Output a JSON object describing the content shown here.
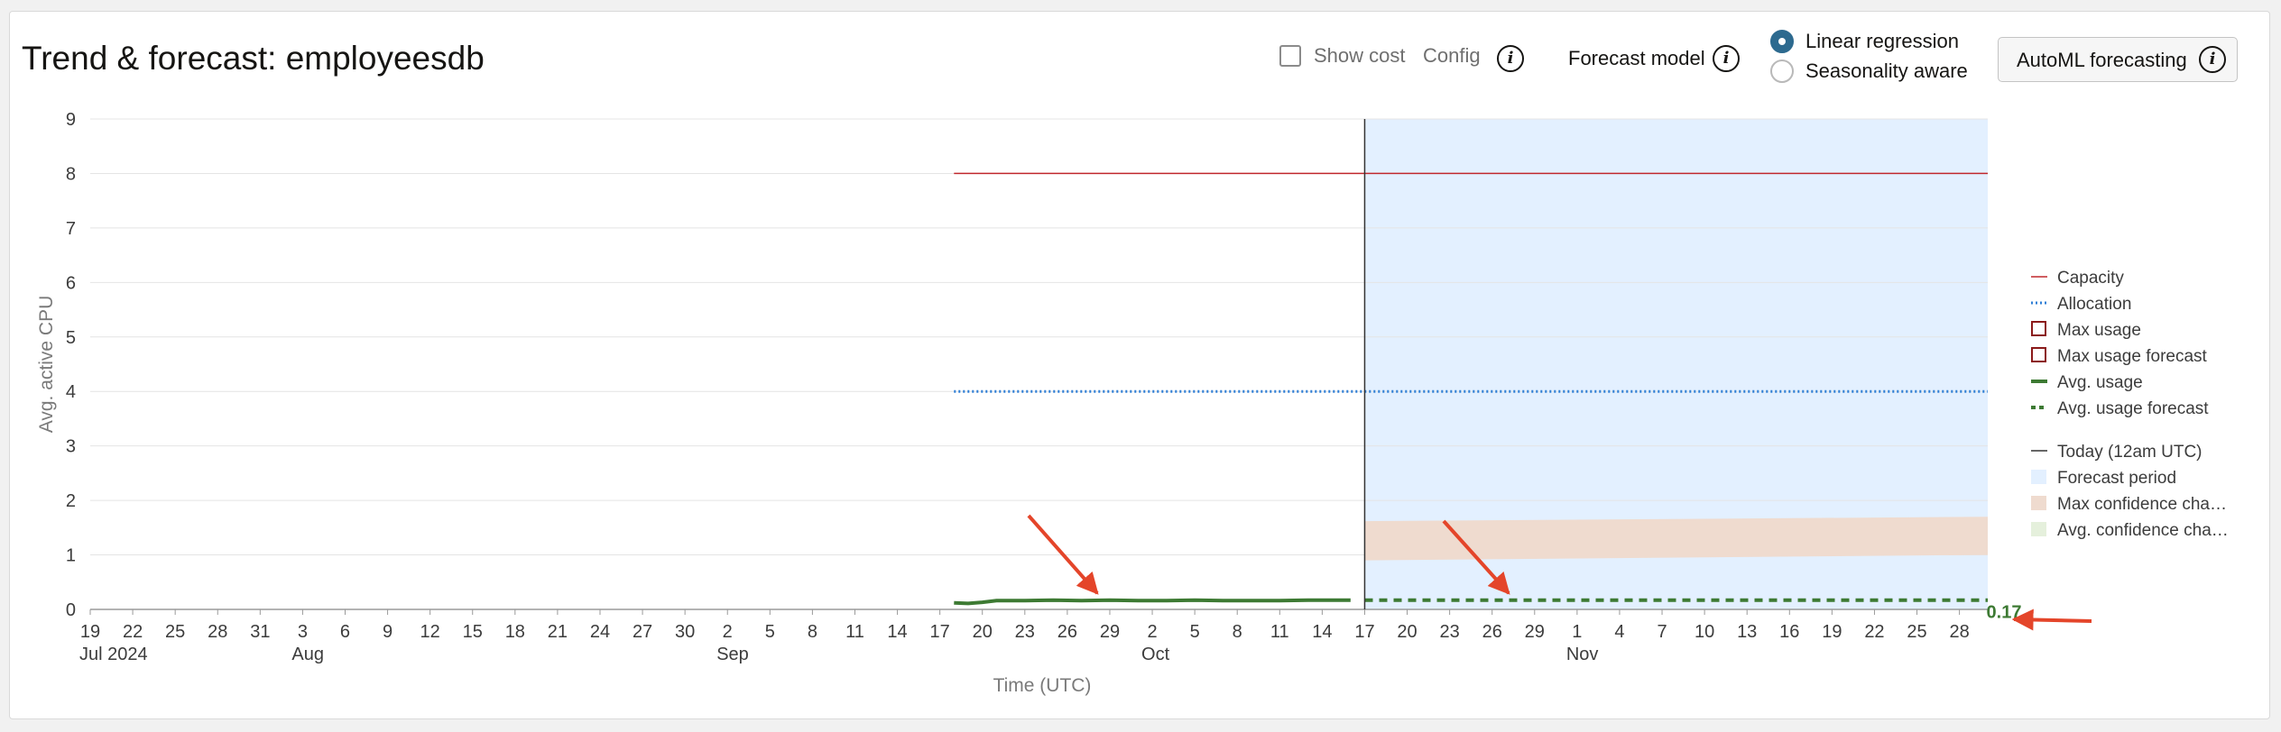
{
  "header": {
    "title": "Trend & forecast: employeesdb",
    "show_cost_label": "Show cost",
    "config_label": "Config",
    "forecast_model_label": "Forecast model",
    "model_options": [
      {
        "label": "Linear regression",
        "selected": true
      },
      {
        "label": "Seasonality aware",
        "selected": false
      }
    ],
    "automl_label": "AutoML forecasting",
    "info_glyph": "i"
  },
  "colors": {
    "capacity": "#c0282d",
    "allocation": "#2f7fd6",
    "avg_usage": "#3d7a33",
    "max_usage": "#8b1a1a",
    "today": "#333333",
    "forecast_period": "#e3f0ff",
    "max_confidence": "#efdbcf",
    "avg_confidence": "#e5f0dc",
    "annotation_arrow": "#e4452a"
  },
  "chart_data": {
    "type": "line",
    "xlabel": "Time (UTC)",
    "ylabel": "Avg. active CPU",
    "ylim": [
      0,
      9
    ],
    "yticks": [
      0,
      1,
      2,
      3,
      4,
      5,
      6,
      7,
      8,
      9
    ],
    "x_range": [
      "2024-07-19",
      "2024-11-30"
    ],
    "x_ticks": [
      {
        "date": "2024-07-19",
        "label": "19",
        "sub": "Jul 2024"
      },
      {
        "date": "2024-07-22",
        "label": "22"
      },
      {
        "date": "2024-07-25",
        "label": "25"
      },
      {
        "date": "2024-07-28",
        "label": "28"
      },
      {
        "date": "2024-07-31",
        "label": "31"
      },
      {
        "date": "2024-08-03",
        "label": "3",
        "sub": "Aug"
      },
      {
        "date": "2024-08-06",
        "label": "6"
      },
      {
        "date": "2024-08-09",
        "label": "9"
      },
      {
        "date": "2024-08-12",
        "label": "12"
      },
      {
        "date": "2024-08-15",
        "label": "15"
      },
      {
        "date": "2024-08-18",
        "label": "18"
      },
      {
        "date": "2024-08-21",
        "label": "21"
      },
      {
        "date": "2024-08-24",
        "label": "24"
      },
      {
        "date": "2024-08-27",
        "label": "27"
      },
      {
        "date": "2024-08-30",
        "label": "30"
      },
      {
        "date": "2024-09-02",
        "label": "2",
        "sub": "Sep"
      },
      {
        "date": "2024-09-05",
        "label": "5"
      },
      {
        "date": "2024-09-08",
        "label": "8"
      },
      {
        "date": "2024-09-11",
        "label": "11"
      },
      {
        "date": "2024-09-14",
        "label": "14"
      },
      {
        "date": "2024-09-17",
        "label": "17"
      },
      {
        "date": "2024-09-20",
        "label": "20"
      },
      {
        "date": "2024-09-23",
        "label": "23"
      },
      {
        "date": "2024-09-26",
        "label": "26"
      },
      {
        "date": "2024-09-29",
        "label": "29"
      },
      {
        "date": "2024-10-02",
        "label": "2",
        "sub": "Oct"
      },
      {
        "date": "2024-10-05",
        "label": "5"
      },
      {
        "date": "2024-10-08",
        "label": "8"
      },
      {
        "date": "2024-10-11",
        "label": "11"
      },
      {
        "date": "2024-10-14",
        "label": "14"
      },
      {
        "date": "2024-10-17",
        "label": "17"
      },
      {
        "date": "2024-10-20",
        "label": "20"
      },
      {
        "date": "2024-10-23",
        "label": "23"
      },
      {
        "date": "2024-10-26",
        "label": "26"
      },
      {
        "date": "2024-10-29",
        "label": "29"
      },
      {
        "date": "2024-11-01",
        "label": "1",
        "sub": "Nov"
      },
      {
        "date": "2024-11-04",
        "label": "4"
      },
      {
        "date": "2024-11-07",
        "label": "7"
      },
      {
        "date": "2024-11-10",
        "label": "10"
      },
      {
        "date": "2024-11-13",
        "label": "13"
      },
      {
        "date": "2024-11-16",
        "label": "16"
      },
      {
        "date": "2024-11-19",
        "label": "19"
      },
      {
        "date": "2024-11-22",
        "label": "22"
      },
      {
        "date": "2024-11-25",
        "label": "25"
      },
      {
        "date": "2024-11-28",
        "label": "28"
      }
    ],
    "today": "2024-10-17",
    "forecast_period": [
      "2024-10-17",
      "2024-11-30"
    ],
    "series": [
      {
        "name": "Capacity",
        "style": "solid",
        "points": [
          [
            "2024-09-18",
            8
          ],
          [
            "2024-11-30",
            8
          ]
        ]
      },
      {
        "name": "Allocation",
        "style": "dotted",
        "points": [
          [
            "2024-09-18",
            4
          ],
          [
            "2024-11-30",
            4
          ]
        ]
      },
      {
        "name": "Avg. usage",
        "style": "thick",
        "points": [
          [
            "2024-09-18",
            0.12
          ],
          [
            "2024-09-19",
            0.11
          ],
          [
            "2024-09-20",
            0.13
          ],
          [
            "2024-09-21",
            0.16
          ],
          [
            "2024-09-23",
            0.16
          ],
          [
            "2024-09-25",
            0.17
          ],
          [
            "2024-09-27",
            0.16
          ],
          [
            "2024-09-29",
            0.17
          ],
          [
            "2024-10-01",
            0.16
          ],
          [
            "2024-10-03",
            0.16
          ],
          [
            "2024-10-05",
            0.17
          ],
          [
            "2024-10-07",
            0.16
          ],
          [
            "2024-10-09",
            0.16
          ],
          [
            "2024-10-11",
            0.16
          ],
          [
            "2024-10-13",
            0.17
          ],
          [
            "2024-10-15",
            0.17
          ],
          [
            "2024-10-16",
            0.17
          ]
        ]
      },
      {
        "name": "Avg. usage forecast",
        "style": "dashed",
        "points": [
          [
            "2024-10-17",
            0.17
          ],
          [
            "2024-11-30",
            0.17
          ]
        ]
      }
    ],
    "max_confidence_band": {
      "start": "2024-10-17",
      "end": "2024-11-30",
      "lower": [
        0.9,
        1.0
      ],
      "upper": [
        1.62,
        1.7
      ]
    },
    "end_value_label": "0.17",
    "legend": {
      "placement": "right",
      "items": [
        {
          "label": "Capacity",
          "marker": "line"
        },
        {
          "label": "Allocation",
          "marker": "dotted"
        },
        {
          "label": "Max usage",
          "marker": "box"
        },
        {
          "label": "Max usage forecast",
          "marker": "box"
        },
        {
          "label": "Avg. usage",
          "marker": "thick"
        },
        {
          "label": "Avg. usage forecast",
          "marker": "dashed"
        },
        {
          "label": "Today (12am UTC)",
          "marker": "today"
        },
        {
          "label": "Forecast period",
          "marker": "fill-forecast"
        },
        {
          "label": "Max confidence cha…",
          "marker": "fill-max"
        },
        {
          "label": "Avg. confidence cha…",
          "marker": "fill-avg"
        }
      ]
    },
    "grid": true
  }
}
